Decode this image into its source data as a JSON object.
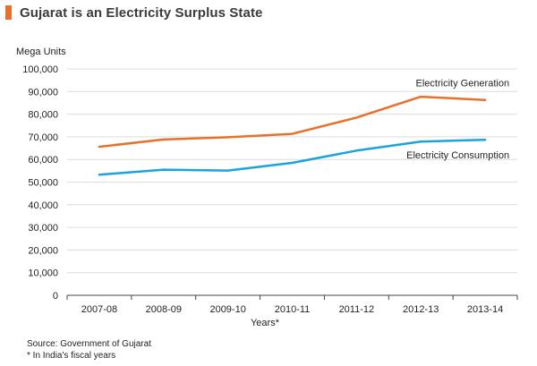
{
  "header": {
    "title": "Gujarat is an Electricity Surplus State",
    "accent_color": "#e8702a"
  },
  "chart_data": {
    "type": "line",
    "title": "Gujarat is an Electricity Surplus State",
    "ylabel": "Mega Units",
    "xlabel": "Years*",
    "categories": [
      "2007-08",
      "2008-09",
      "2009-10",
      "2010-11",
      "2011-12",
      "2012-13",
      "2013-14"
    ],
    "ylim": [
      0,
      100000
    ],
    "yticks": [
      0,
      10000,
      20000,
      30000,
      40000,
      50000,
      60000,
      70000,
      80000,
      90000,
      100000
    ],
    "ytick_labels": [
      "0",
      "10,000",
      "20,000",
      "30,000",
      "40,000",
      "50,000",
      "60,000",
      "70,000",
      "80,000",
      "90,000",
      "100,000"
    ],
    "grid": true,
    "series": [
      {
        "name": "Electricity Generation",
        "color": "#e8702a",
        "values": [
          65600,
          68800,
          69800,
          71300,
          78500,
          87700,
          86300
        ]
      },
      {
        "name": "Electricity Consumption",
        "color": "#1ba3dc",
        "values": [
          53300,
          55500,
          55100,
          58500,
          63900,
          67900,
          68700
        ]
      }
    ]
  },
  "footer": {
    "source": "Source: Government of Gujarat",
    "note": "* In India's fiscal years"
  }
}
